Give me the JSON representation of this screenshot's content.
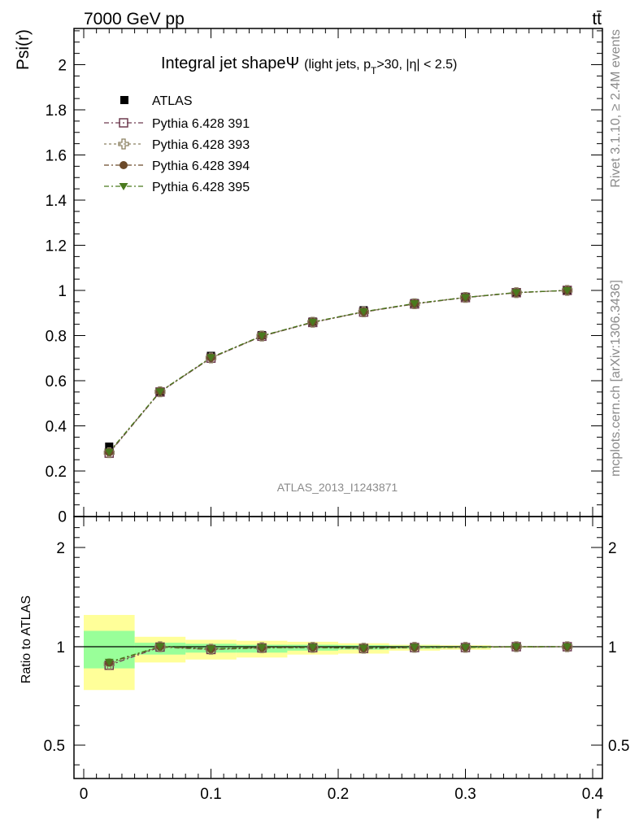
{
  "header": {
    "energy_label": "7000 GeV pp",
    "process_label": "tt̄"
  },
  "side": {
    "rivet_label": "Rivet 3.1.10, ≥ 2.4M events",
    "mcplots_label": "mcplots.cern.ch [arXiv:1306.3436]"
  },
  "chart_data": {
    "type": "scatter",
    "title_main": "Integral jet shape",
    "title_psi": "Ψ",
    "title_detail": "(light jets, p",
    "title_sub": "T",
    "title_tail": ">30, |η| < 2.5)",
    "analysis_label": "ATLAS_2013_I1243871",
    "xlabel": "r",
    "ylabel": "Psi(r)",
    "ratio_ylabel": "Ratio to ATLAS",
    "xlim": [
      0,
      0.4
    ],
    "ylim": [
      0,
      2.15
    ],
    "ratio_ylim": [
      0.35,
      2.3
    ],
    "x_ticks": [
      "0",
      "0.1",
      "0.2",
      "0.3",
      "0.4"
    ],
    "y_ticks": [
      "0",
      "0.2",
      "0.4",
      "0.6",
      "0.8",
      "1",
      "1.2",
      "1.4",
      "1.6",
      "1.8",
      "2"
    ],
    "ratio_ticks": [
      "0.5",
      "1",
      "2"
    ],
    "x": [
      0.02,
      0.06,
      0.1,
      0.14,
      0.18,
      0.22,
      0.26,
      0.3,
      0.34,
      0.38
    ],
    "bin_edges": [
      0.0,
      0.04,
      0.08,
      0.12,
      0.16,
      0.2,
      0.24,
      0.28,
      0.32,
      0.36,
      0.4
    ],
    "data": {
      "name": "ATLAS",
      "values": [
        0.308,
        0.551,
        0.71,
        0.802,
        0.862,
        0.912,
        0.944,
        0.972,
        0.99,
        1.0
      ],
      "color": "#000000",
      "stat_band": [
        [
          0.89,
          1.16
        ],
        [
          0.96,
          1.04
        ],
        [
          0.97,
          1.03
        ],
        [
          0.97,
          1.02
        ],
        [
          0.98,
          1.02
        ],
        [
          0.985,
          1.015
        ],
        [
          0.99,
          1.01
        ],
        [
          0.993,
          1.007
        ],
        [
          0.997,
          1.003
        ],
        [
          1.0,
          1.0
        ]
      ],
      "total_band": [
        [
          0.78,
          1.32
        ],
        [
          0.92,
          1.1
        ],
        [
          0.935,
          1.07
        ],
        [
          0.945,
          1.06
        ],
        [
          0.96,
          1.05
        ],
        [
          0.965,
          1.035
        ],
        [
          0.98,
          1.02
        ],
        [
          0.985,
          1.015
        ],
        [
          0.995,
          1.005
        ],
        [
          1.0,
          1.0
        ]
      ]
    },
    "series": [
      {
        "name": "Pythia 6.428 391",
        "marker": "open-square",
        "color": "#6e3b4f",
        "values": [
          0.279,
          0.55,
          0.7,
          0.797,
          0.858,
          0.904,
          0.94,
          0.968,
          0.99,
          1.0
        ]
      },
      {
        "name": "Pythia 6.428 393",
        "marker": "open-cross",
        "color": "#8b8060",
        "values": [
          0.281,
          0.551,
          0.701,
          0.798,
          0.859,
          0.905,
          0.941,
          0.969,
          0.99,
          1.0
        ]
      },
      {
        "name": "Pythia 6.428 394",
        "marker": "filled-circle",
        "color": "#6b4a2a",
        "values": [
          0.283,
          0.552,
          0.702,
          0.798,
          0.859,
          0.905,
          0.941,
          0.969,
          0.99,
          1.0
        ]
      },
      {
        "name": "Pythia 6.428 395",
        "marker": "filled-triangle-down",
        "color": "#4a7a1e",
        "values": [
          0.284,
          0.552,
          0.703,
          0.799,
          0.86,
          0.906,
          0.942,
          0.969,
          0.991,
          1.0
        ]
      }
    ],
    "band_colors": {
      "stat": "#99ff99",
      "total": "#ffff99"
    }
  }
}
